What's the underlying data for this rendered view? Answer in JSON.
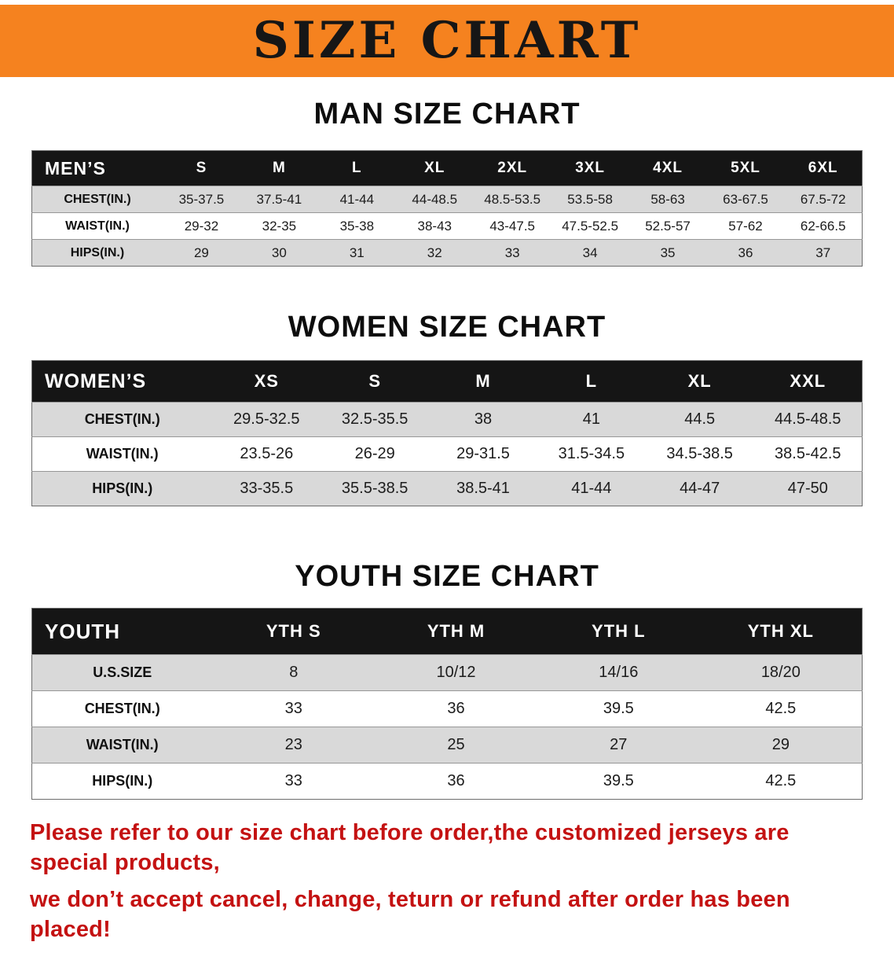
{
  "banner": {
    "title": "SIZE CHART",
    "background": "#f5821f"
  },
  "men": {
    "title": "MAN SIZE CHART",
    "header": [
      "MEN’S",
      "S",
      "M",
      "L",
      "XL",
      "2XL",
      "3XL",
      "4XL",
      "5XL",
      "6XL"
    ],
    "rows": [
      {
        "label": "CHEST(IN.)",
        "values": [
          "35-37.5",
          "37.5-41",
          "41-44",
          "44-48.5",
          "48.5-53.5",
          "53.5-58",
          "58-63",
          "63-67.5",
          "67.5-72"
        ]
      },
      {
        "label": "WAIST(IN.)",
        "values": [
          "29-32",
          "32-35",
          "35-38",
          "38-43",
          "43-47.5",
          "47.5-52.5",
          "52.5-57",
          "57-62",
          "62-66.5"
        ]
      },
      {
        "label": "HIPS(IN.)",
        "values": [
          "29",
          "30",
          "31",
          "32",
          "33",
          "34",
          "35",
          "36",
          "37"
        ]
      }
    ]
  },
  "women": {
    "title": "WOMEN SIZE CHART",
    "header": [
      "WOMEN’S",
      "XS",
      "S",
      "M",
      "L",
      "XL",
      "XXL"
    ],
    "rows": [
      {
        "label": "CHEST(IN.)",
        "values": [
          "29.5-32.5",
          "32.5-35.5",
          "38",
          "41",
          "44.5",
          "44.5-48.5"
        ]
      },
      {
        "label": "WAIST(IN.)",
        "values": [
          "23.5-26",
          "26-29",
          "29-31.5",
          "31.5-34.5",
          "34.5-38.5",
          "38.5-42.5"
        ]
      },
      {
        "label": "HIPS(IN.)",
        "values": [
          "33-35.5",
          "35.5-38.5",
          "38.5-41",
          "41-44",
          "44-47",
          "47-50"
        ]
      }
    ]
  },
  "youth": {
    "title": "YOUTH SIZE CHART",
    "header": [
      "YOUTH",
      "YTH S",
      "YTH M",
      "YTH L",
      "YTH XL"
    ],
    "rows": [
      {
        "label": "U.S.SIZE",
        "values": [
          "8",
          "10/12",
          "14/16",
          "18/20"
        ]
      },
      {
        "label": "CHEST(IN.)",
        "values": [
          "33",
          "36",
          "39.5",
          "42.5"
        ]
      },
      {
        "label": "WAIST(IN.)",
        "values": [
          "23",
          "25",
          "27",
          "29"
        ]
      },
      {
        "label": "HIPS(IN.)",
        "values": [
          "33",
          "36",
          "39.5",
          "42.5"
        ]
      }
    ]
  },
  "disclaimer": {
    "line1": "Please refer to our size chart before order,the customized jerseys are special products,",
    "line2": "we don’t accept cancel, change, teturn or refund after order has been placed!",
    "color": "#c41212"
  }
}
